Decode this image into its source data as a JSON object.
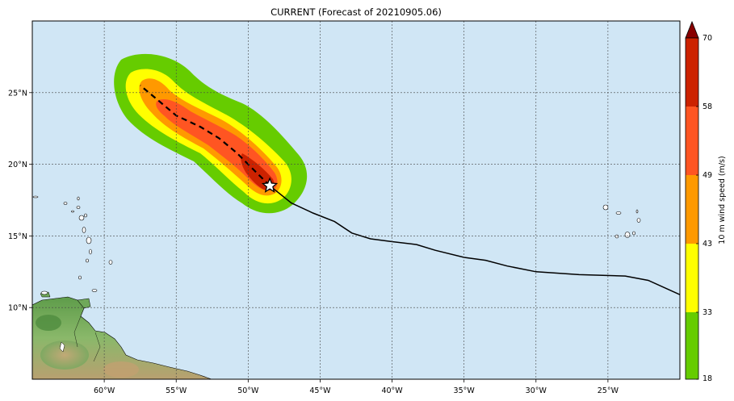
{
  "title": "CURRENT (Forecast of 20210905.06)",
  "colorbar": {
    "label": "10 m wind speed (m/s)",
    "ticks": [
      "18",
      "33",
      "43",
      "49",
      "58",
      "70"
    ],
    "colors": [
      "#66cc00",
      "#ffff00",
      "#ff9900",
      "#ff5522",
      "#cc2200",
      "#880000"
    ]
  },
  "axes": {
    "lon_labels": [
      "60°W",
      "55°W",
      "50°W",
      "45°W",
      "40°W",
      "35°W",
      "30°W",
      "25°W"
    ],
    "lat_labels": [
      "25°N",
      "20°N",
      "15°N",
      "10°N"
    ],
    "lon_range": [
      -65,
      -20
    ],
    "lat_range": [
      5,
      30
    ],
    "grid": true
  },
  "colors": {
    "ocean": "#d0e6f5",
    "land": "#6fa85a",
    "track": "#000000",
    "forecast_track": "#000000"
  },
  "storm_marker": "white-star",
  "past_track": [
    [
      -20.0,
      10.9
    ],
    [
      -22.2,
      11.9
    ],
    [
      -23.8,
      12.2
    ],
    [
      -27.0,
      12.3
    ],
    [
      -30.0,
      12.5
    ],
    [
      -32.0,
      12.9
    ],
    [
      -33.5,
      13.3
    ],
    [
      -35.0,
      13.5
    ],
    [
      -37.0,
      14.0
    ],
    [
      -38.3,
      14.4
    ],
    [
      -40.0,
      14.6
    ],
    [
      -41.5,
      14.8
    ],
    [
      -42.8,
      15.2
    ],
    [
      -44.0,
      16.0
    ],
    [
      -45.5,
      16.6
    ],
    [
      -47.0,
      17.3
    ],
    [
      -48.5,
      18.5
    ]
  ],
  "forecast_track": [
    [
      -48.5,
      18.5
    ],
    [
      -49.5,
      19.5
    ],
    [
      -50.8,
      20.8
    ],
    [
      -52.0,
      21.8
    ],
    [
      -53.3,
      22.6
    ],
    [
      -55.0,
      23.4
    ],
    [
      -56.3,
      24.5
    ],
    [
      -57.5,
      25.5
    ]
  ]
}
